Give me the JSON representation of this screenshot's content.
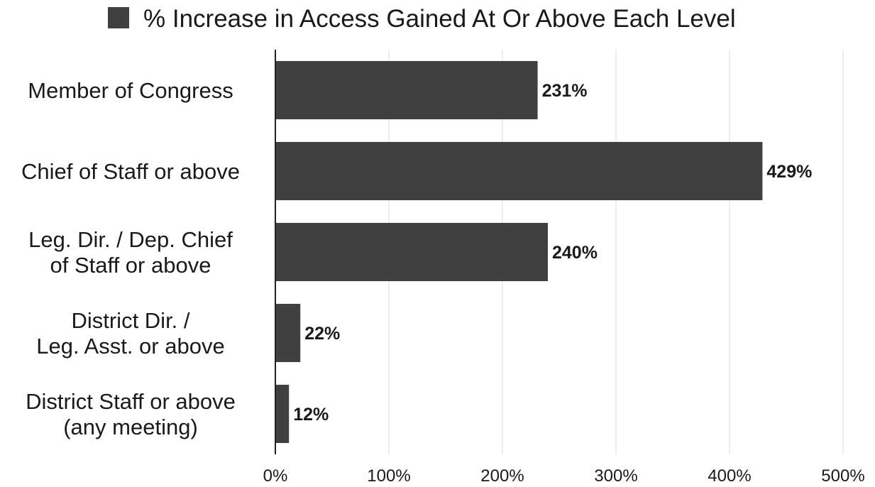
{
  "chart_data": {
    "type": "bar",
    "orientation": "horizontal",
    "categories": [
      [
        "Member of Congress"
      ],
      [
        "Chief of Staff or above"
      ],
      [
        "Leg. Dir. / Dep. Chief",
        "of Staff or above"
      ],
      [
        "District Dir. /",
        "Leg. Asst. or above"
      ],
      [
        "District Staff or above",
        "(any meeting)"
      ]
    ],
    "series": [
      {
        "name": "% Increase in Access Gained At Or Above Each Level",
        "values": [
          231,
          429,
          240,
          22,
          12
        ],
        "labels": [
          "231%",
          "429%",
          "240%",
          "22%",
          "12%"
        ]
      }
    ],
    "xlim": [
      0,
      500
    ],
    "x_ticks": [
      0,
      100,
      200,
      300,
      400,
      500
    ],
    "x_tick_labels": [
      "0%",
      "100%",
      "200%",
      "300%",
      "400%",
      "500%"
    ],
    "grid": "vertical",
    "legend_position": "top",
    "bar_color": "#404040",
    "grid_color": "#dddddd"
  }
}
